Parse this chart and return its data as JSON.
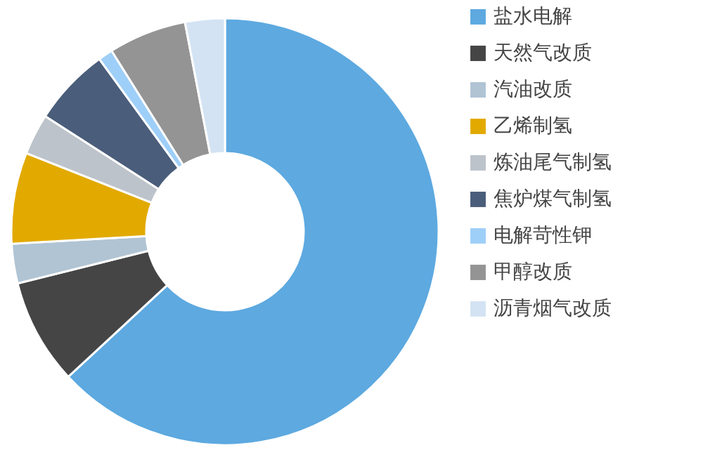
{
  "chart_data": {
    "type": "donut",
    "categories": [
      "盐水电解",
      "天然气改质",
      "汽油改质",
      "乙烯制氢",
      "炼油尾气制氢",
      "焦炉煤气制氢",
      "电解苛性钾",
      "甲醇改质",
      "沥青烟气改质"
    ],
    "values": [
      63.1,
      8.0,
      3.0,
      6.9,
      3.1,
      5.9,
      1.1,
      5.9,
      3.0
    ],
    "colors": [
      "#5da9e0",
      "#454545",
      "#b0c4d4",
      "#e2aa00",
      "#bcc3ca",
      "#4a5d7a",
      "#9ecff8",
      "#949494",
      "#d3e3f3"
    ],
    "legend": "right"
  }
}
